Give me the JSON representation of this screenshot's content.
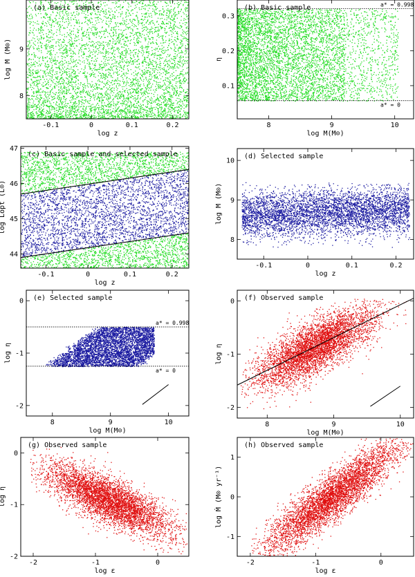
{
  "figure": {
    "colors": {
      "basic": "#22dd22",
      "selected": "#1a1aa0",
      "observed": "#e01010",
      "line": "#000000"
    }
  },
  "chart_data": [
    {
      "id": "a",
      "type": "scatter",
      "title": "(a)  Basic sample",
      "xlabel": "log z",
      "ylabel": "log M (M⊙)",
      "xlim": [
        -0.16,
        0.24
      ],
      "ylim": [
        7.5,
        10.05
      ],
      "xticks": [
        -0.1,
        0,
        0.1,
        0.2
      ],
      "xtick_labels": [
        "-0.1",
        "0",
        "0.1",
        "0.2"
      ],
      "yticks": [
        8,
        9
      ],
      "ytick_labels": [
        "8",
        "9"
      ],
      "series": [
        {
          "color_key": "basic",
          "n_points": 5200,
          "distribution": "dense near log M 7.5-8.5, thinning upward, slightly denser at high z",
          "x_range": [
            -0.16,
            0.24
          ],
          "y_range": [
            7.5,
            10.05
          ]
        }
      ]
    },
    {
      "id": "b",
      "type": "scatter",
      "title": "(b)  Basic sample",
      "xlabel": "log M(M⊙)",
      "ylabel": "η",
      "xlim": [
        7.5,
        10.3
      ],
      "ylim": [
        0.005,
        0.345
      ],
      "xticks": [
        8,
        9,
        10
      ],
      "xtick_labels": [
        "8",
        "9",
        "10"
      ],
      "yticks": [
        0.1,
        0.2,
        0.3
      ],
      "ytick_labels": [
        "0.1",
        "0.2",
        "0.3"
      ],
      "hlines": [
        {
          "y": 0.32,
          "label": "a* = 0.998"
        },
        {
          "y": 0.057,
          "label": "a* = 0"
        }
      ],
      "series": [
        {
          "color_key": "basic",
          "n_points": 5200,
          "x_range": [
            7.5,
            10.05
          ],
          "y_range": [
            0.057,
            0.32
          ]
        }
      ]
    },
    {
      "id": "c",
      "type": "scatter",
      "title": "(c)  Basic sample and selected sample",
      "xlabel": "log z",
      "ylabel": "log Lopt (L⊙)",
      "xlim": [
        -0.16,
        0.24
      ],
      "ylim": [
        43.6,
        47.05
      ],
      "xticks": [
        -0.1,
        0,
        0.1,
        0.2
      ],
      "xtick_labels": [
        "-0.1",
        "0",
        "0.1",
        "0.2"
      ],
      "yticks": [
        44,
        45,
        46,
        47
      ],
      "ytick_labels": [
        "44",
        "45",
        "46",
        "47"
      ],
      "lines": [
        {
          "x": [
            -0.16,
            0.24
          ],
          "y": [
            45.7,
            46.4
          ]
        },
        {
          "x": [
            -0.16,
            0.24
          ],
          "y": [
            43.9,
            44.6
          ]
        }
      ],
      "series": [
        {
          "color_key": "basic",
          "n_points": 3000,
          "y_range": [
            43.6,
            46.9
          ]
        },
        {
          "color_key": "selected",
          "n_points": 3000,
          "note": "points between the two limit lines"
        }
      ]
    },
    {
      "id": "d",
      "type": "scatter",
      "title": "(d)  Selected sample",
      "xlabel": "log z",
      "ylabel": "log M (M⊙)",
      "xlim": [
        -0.16,
        0.24
      ],
      "ylim": [
        7.5,
        10.3
      ],
      "xticks": [
        -0.1,
        0,
        0.1,
        0.2
      ],
      "xtick_labels": [
        "-0.1",
        "0",
        "0.1",
        "0.2"
      ],
      "yticks": [
        8,
        9,
        10
      ],
      "ytick_labels": [
        "8",
        "9",
        "10"
      ],
      "series": [
        {
          "color_key": "selected",
          "n_points": 4500,
          "x_range": [
            -0.15,
            0.23
          ],
          "y_range": [
            7.8,
            9.45
          ]
        }
      ]
    },
    {
      "id": "e",
      "type": "scatter",
      "title": "(e)   Selected sample",
      "xlabel": "log M(M⊙)",
      "ylabel": "log η",
      "xlim": [
        7.55,
        10.35
      ],
      "ylim": [
        -2.2,
        0.2
      ],
      "xticks": [
        8,
        9,
        10
      ],
      "xtick_labels": [
        "8",
        "9",
        "10"
      ],
      "yticks": [
        -2,
        -1,
        0
      ],
      "ytick_labels": [
        "-2",
        "-1",
        "0"
      ],
      "hlines": [
        {
          "y": -0.5,
          "label": "a* = 0.998"
        },
        {
          "y": -1.25,
          "label": "a* = 0"
        }
      ],
      "segments": [
        {
          "x": [
            9.55,
            10.0
          ],
          "y": [
            -1.98,
            -1.6
          ]
        }
      ],
      "series": [
        {
          "color_key": "selected",
          "n_points": 4500,
          "y_range": [
            -1.25,
            -0.5
          ],
          "note": "parallelogram band of slope about 0.9 in log eta vs log M"
        }
      ]
    },
    {
      "id": "f",
      "type": "scatter",
      "title": "(f)   Observed sample",
      "xlabel": "log M(M⊙)",
      "ylabel": "log η",
      "xlim": [
        7.55,
        10.2
      ],
      "ylim": [
        -2.2,
        0.2
      ],
      "xticks": [
        8,
        9,
        10
      ],
      "xtick_labels": [
        "8",
        "9",
        "10"
      ],
      "yticks": [
        -2,
        -1,
        0
      ],
      "ytick_labels": [
        "-2",
        "-1",
        "0"
      ],
      "lines": [
        {
          "x": [
            7.55,
            10.2
          ],
          "y": [
            -1.58,
            0.05
          ]
        }
      ],
      "segments": [
        {
          "x": [
            9.55,
            10.0
          ],
          "y": [
            -1.98,
            -1.6
          ]
        }
      ],
      "series": [
        {
          "color_key": "observed",
          "n_points": 4500,
          "x_range": [
            7.6,
            10.1
          ],
          "y_range": [
            -2.0,
            0.0
          ]
        }
      ]
    },
    {
      "id": "g",
      "type": "scatter",
      "title": "(g)  Observed sample",
      "xlabel": "log ε",
      "ylabel": "log η",
      "xlim": [
        -2.2,
        0.5
      ],
      "ylim": [
        -2.0,
        0.3
      ],
      "xticks": [
        -2,
        -1,
        0
      ],
      "xtick_labels": [
        "-2",
        "-1",
        "0"
      ],
      "yticks": [
        -2,
        -1,
        0
      ],
      "ytick_labels": [
        "-2",
        "-1",
        "0"
      ],
      "series": [
        {
          "color_key": "observed",
          "n_points": 4500,
          "x_range": [
            -2.0,
            0.45
          ],
          "y_range": [
            -1.85,
            0.1
          ],
          "note": "anti-correlated band"
        }
      ]
    },
    {
      "id": "h",
      "type": "scatter",
      "title": "(h)  Observed sample",
      "xlabel": "log ε",
      "ylabel": "log Ṁ (M⊙ yr⁻¹)",
      "xlim": [
        -2.2,
        0.5
      ],
      "ylim": [
        -1.5,
        1.5
      ],
      "xticks": [
        -2,
        -1,
        0
      ],
      "xtick_labels": [
        "-2",
        "-1",
        "0"
      ],
      "yticks": [
        -1,
        0,
        1
      ],
      "ytick_labels": [
        "-1",
        "0",
        "1"
      ],
      "series": [
        {
          "color_key": "observed",
          "n_points": 4500,
          "x_range": [
            -1.95,
            0.45
          ],
          "y_range": [
            -1.45,
            1.45
          ],
          "note": "positively correlated band"
        }
      ]
    }
  ]
}
